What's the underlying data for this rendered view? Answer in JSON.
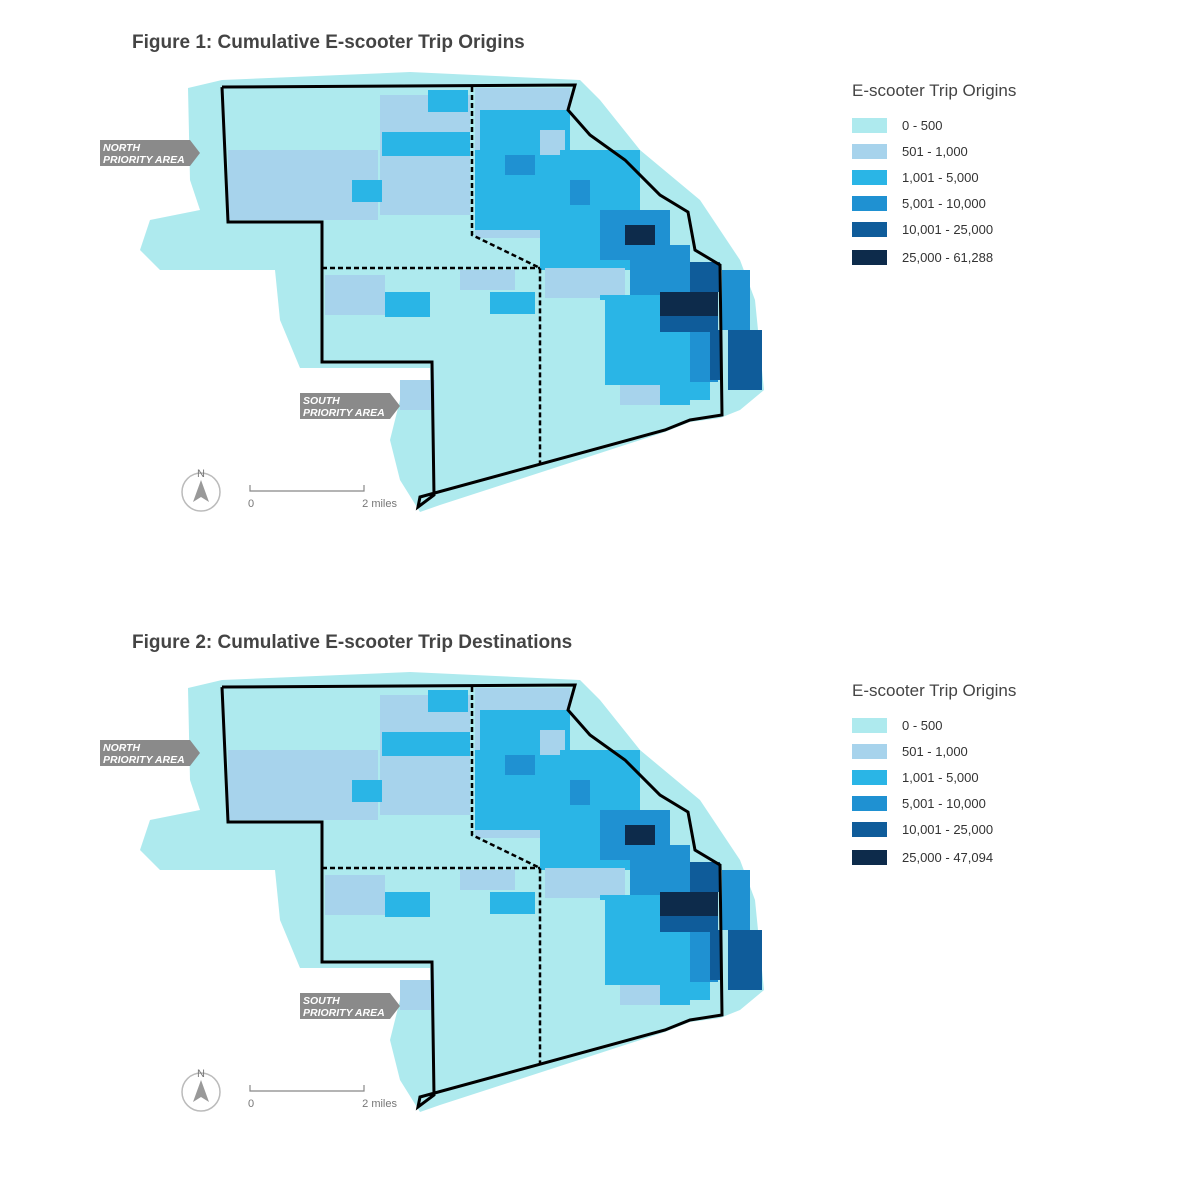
{
  "figures": [
    {
      "title": "Figure 1: Cumulative E-scooter Trip Origins",
      "legend": {
        "title": "E-scooter Trip Origins",
        "items": [
          {
            "label": "0 - 500",
            "color": "#aeeaee"
          },
          {
            "label": "501 - 1,000",
            "color": "#a7d3ec"
          },
          {
            "label": "1,001 - 5,000",
            "color": "#2ab5e6"
          },
          {
            "label": "5,001 - 10,000",
            "color": "#1f91d2"
          },
          {
            "label": "10,001 - 25,000",
            "color": "#0f5c9a"
          },
          {
            "label": "25,000 - 61,288",
            "color": "#0d2b4b"
          }
        ]
      },
      "north_area": [
        "NORTH",
        "PRIORITY AREA"
      ],
      "south_area": [
        "SOUTH",
        "PRIORITY AREA"
      ],
      "north_arrow": "N",
      "scale": [
        "0",
        "2 miles"
      ]
    },
    {
      "title": "Figure 2: Cumulative E-scooter Trip Destinations",
      "legend": {
        "title": "E-scooter Trip Origins",
        "items": [
          {
            "label": "0 - 500",
            "color": "#aeeaee"
          },
          {
            "label": "501 - 1,000",
            "color": "#a7d3ec"
          },
          {
            "label": "1,001 - 5,000",
            "color": "#2ab5e6"
          },
          {
            "label": "5,001 - 10,000",
            "color": "#1f91d2"
          },
          {
            "label": "10,001 - 25,000",
            "color": "#0f5c9a"
          },
          {
            "label": "25,000 - 47,094",
            "color": "#0d2b4b"
          }
        ]
      },
      "north_area": [
        "NORTH",
        "PRIORITY AREA"
      ],
      "south_area": [
        "SOUTH",
        "PRIORITY AREA"
      ],
      "north_arrow": "N",
      "scale": [
        "0",
        "2 miles"
      ]
    }
  ]
}
